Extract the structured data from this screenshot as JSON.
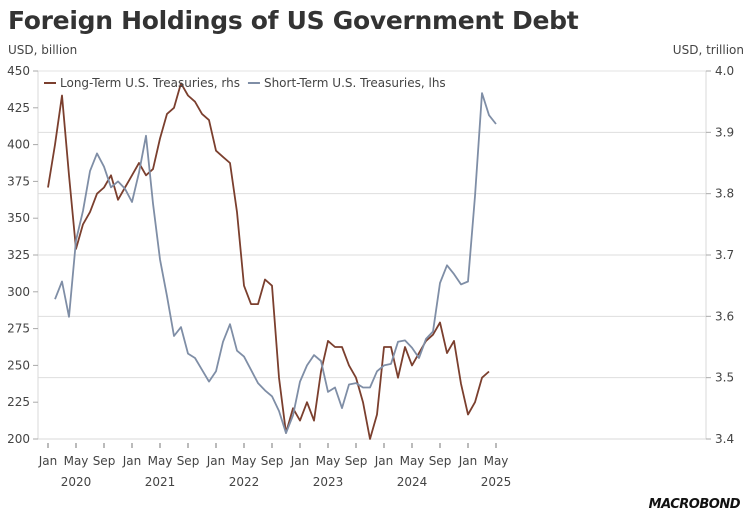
{
  "chart_data": {
    "type": "line",
    "title": "Foreign Holdings of US Government Debt",
    "ylabel_left": "USD, billion",
    "ylabel_right": "USD, trillion",
    "source_brand": "MACROBOND",
    "ylim_left": [
      200,
      450
    ],
    "ylim_right": [
      3.4,
      4.0
    ],
    "yticks_left": [
      "450",
      "425",
      "400",
      "375",
      "350",
      "325",
      "300",
      "275",
      "250",
      "225",
      "200"
    ],
    "yticks_right": [
      "4.0",
      "3.9",
      "3.8",
      "3.7",
      "3.6",
      "3.5",
      "3.4"
    ],
    "xticks": [
      {
        "label": "Jan",
        "month_index": 0
      },
      {
        "label": "May",
        "month_index": 4
      },
      {
        "label": "Sep",
        "month_index": 8
      },
      {
        "label": "Jan",
        "month_index": 12
      },
      {
        "label": "May",
        "month_index": 16
      },
      {
        "label": "Sep",
        "month_index": 20
      },
      {
        "label": "Jan",
        "month_index": 24
      },
      {
        "label": "May",
        "month_index": 28
      },
      {
        "label": "Sep",
        "month_index": 32
      },
      {
        "label": "Jan",
        "month_index": 36
      },
      {
        "label": "May",
        "month_index": 40
      },
      {
        "label": "Sep",
        "month_index": 44
      },
      {
        "label": "Jan",
        "month_index": 48
      },
      {
        "label": "May",
        "month_index": 52
      },
      {
        "label": "Sep",
        "month_index": 56
      },
      {
        "label": "Jan",
        "month_index": 60
      },
      {
        "label": "May",
        "month_index": 64
      }
    ],
    "years": [
      {
        "label": "2020",
        "month_index": 4
      },
      {
        "label": "2021",
        "month_index": 16
      },
      {
        "label": "2022",
        "month_index": 28
      },
      {
        "label": "2023",
        "month_index": 40
      },
      {
        "label": "2024",
        "month_index": 52
      },
      {
        "label": "2025",
        "month_index": 64
      }
    ],
    "x_start": "2020-01",
    "grid": true,
    "legend_position": "top-left",
    "series": [
      {
        "name": "Long-Term U.S. Treasuries, rhs",
        "axis": "right",
        "color": "#7b3f2e",
        "start_month_index": 0,
        "values": [
          3.81,
          3.88,
          3.96,
          3.83,
          3.71,
          3.75,
          3.77,
          3.8,
          3.81,
          3.83,
          3.79,
          3.81,
          3.83,
          3.85,
          3.83,
          3.84,
          3.89,
          3.93,
          3.94,
          3.98,
          3.96,
          3.95,
          3.93,
          3.92,
          3.87,
          3.86,
          3.85,
          3.77,
          3.65,
          3.62,
          3.62,
          3.66,
          3.65,
          3.5,
          3.41,
          3.45,
          3.43,
          3.46,
          3.43,
          3.51,
          3.56,
          3.55,
          3.55,
          3.52,
          3.5,
          3.46,
          3.4,
          3.44,
          3.55,
          3.55,
          3.5,
          3.55,
          3.52,
          3.54,
          3.56,
          3.57,
          3.59,
          3.54,
          3.56,
          3.49,
          3.44,
          3.46,
          3.5,
          3.51
        ]
      },
      {
        "name": "Short-Term U.S. Treasuries, lhs",
        "axis": "left",
        "color": "#7f8ea6",
        "start_month_index": 1,
        "values": [
          295,
          307,
          283,
          335,
          355,
          382,
          394,
          385,
          371,
          375,
          370,
          361,
          381,
          406,
          360,
          322,
          297,
          270,
          276,
          258,
          255,
          247,
          239,
          246,
          266,
          278,
          260,
          256,
          247,
          238,
          233,
          229,
          219,
          204,
          216,
          239,
          250,
          257,
          253,
          232,
          235,
          221,
          237,
          238,
          235,
          235,
          246,
          250,
          251,
          266,
          267,
          262,
          255,
          268,
          273,
          306,
          318,
          312,
          305,
          307,
          365,
          435,
          420,
          414
        ]
      }
    ]
  }
}
